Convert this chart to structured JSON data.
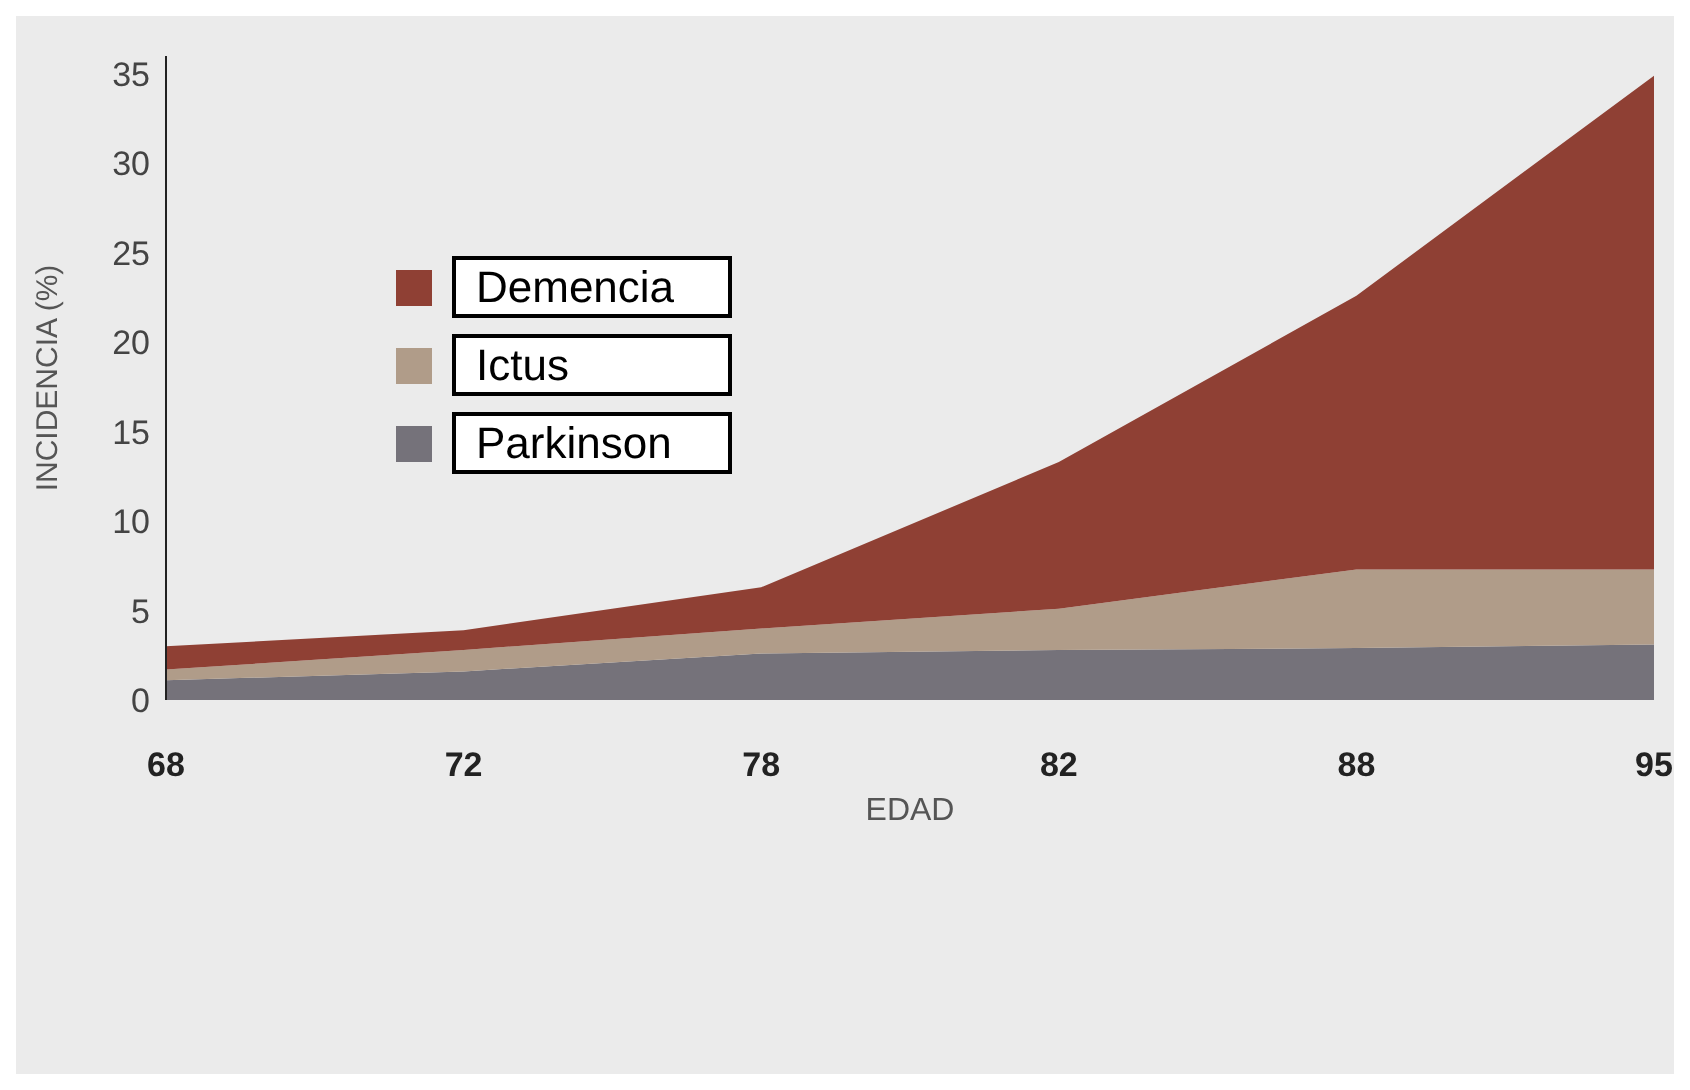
{
  "chart_data": {
    "type": "area",
    "stacked": true,
    "xlabel": "EDAD",
    "ylabel": "INCIDENCIA (%)",
    "categories": [
      "68",
      "72",
      "78",
      "82",
      "88",
      "95"
    ],
    "series": [
      {
        "name": "Parkinson",
        "color": "#75727a",
        "values": [
          1.1,
          1.6,
          2.6,
          2.8,
          2.9,
          3.1
        ]
      },
      {
        "name": "Ictus",
        "color": "#b09c89",
        "values": [
          0.6,
          1.2,
          1.4,
          2.3,
          4.4,
          4.2
        ]
      },
      {
        "name": "Demencia",
        "color": "#8f4034",
        "values": [
          1.3,
          1.1,
          2.3,
          8.2,
          15.3,
          27.6
        ]
      }
    ],
    "ylim": [
      0,
      36
    ],
    "yticks": [
      0,
      5,
      10,
      15,
      20,
      25,
      30,
      35
    ],
    "legend": "top left"
  }
}
